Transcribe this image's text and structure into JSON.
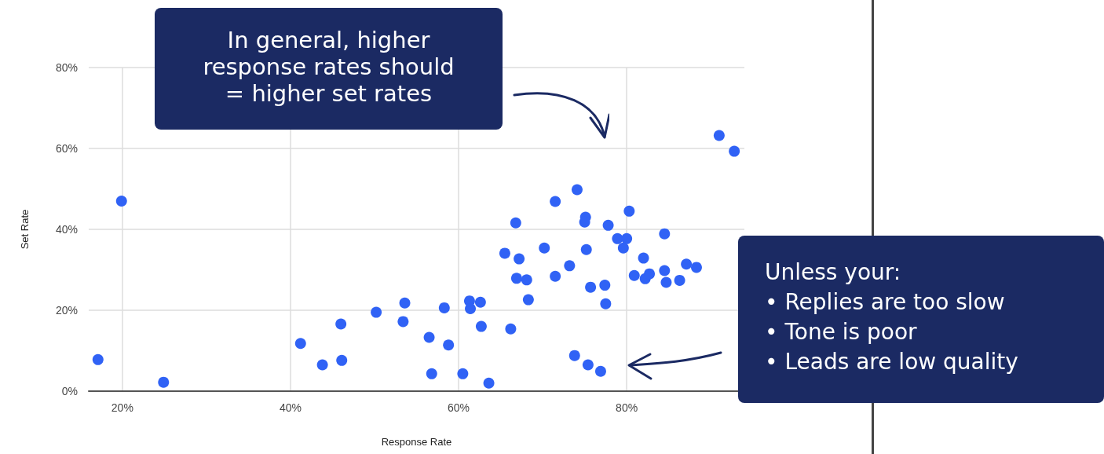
{
  "chart_data": {
    "type": "scatter",
    "xlabel": "Response Rate",
    "ylabel": "Set Rate",
    "x": [
      17.1,
      19.9,
      24.9,
      41.2,
      43.8,
      46.0,
      46.1,
      50.2,
      53.4,
      53.6,
      56.5,
      56.8,
      58.3,
      58.8,
      60.5,
      61.3,
      62.6,
      61.4,
      63.6,
      62.7,
      66.2,
      65.5,
      66.8,
      67.2,
      66.9,
      68.1,
      68.3,
      70.2,
      71.5,
      71.5,
      73.2,
      74.1,
      73.8,
      75.1,
      75.0,
      75.2,
      75.7,
      75.4,
      76.9,
      77.4,
      77.5,
      77.8,
      78.9,
      80.0,
      79.6,
      80.3,
      80.9,
      82.0,
      82.2,
      82.7,
      84.5,
      84.5,
      84.7,
      86.3,
      87.1,
      88.3,
      91.0,
      92.8
    ],
    "values": [
      7.8,
      47.0,
      2.2,
      11.8,
      6.5,
      16.6,
      7.6,
      19.5,
      17.2,
      21.8,
      13.3,
      4.3,
      20.6,
      11.4,
      4.3,
      22.3,
      22.0,
      20.4,
      2.0,
      16.0,
      15.4,
      34.1,
      41.6,
      32.7,
      27.9,
      27.5,
      22.6,
      35.4,
      46.9,
      28.4,
      31.0,
      49.8,
      8.8,
      43.0,
      41.8,
      35.0,
      25.7,
      6.5,
      4.9,
      26.2,
      21.6,
      41.0,
      37.7,
      37.7,
      35.4,
      44.5,
      28.6,
      32.9,
      27.8,
      29.0,
      38.9,
      29.8,
      26.9,
      27.4,
      31.4,
      30.6,
      63.2,
      59.3
    ],
    "color": "#3062f5",
    "marker": "circle",
    "grid": true,
    "xlim": [
      16,
      94
    ],
    "xticks": [
      {
        "value": 20,
        "label": "20%"
      },
      {
        "value": 40,
        "label": "40%"
      },
      {
        "value": 60,
        "label": "60%"
      },
      {
        "value": 80,
        "label": "80%"
      }
    ],
    "ylim": [
      0,
      80
    ],
    "yticks": [
      {
        "value": 0,
        "label": "0%"
      },
      {
        "value": 20,
        "label": "20%"
      },
      {
        "value": 40,
        "label": "40%"
      },
      {
        "value": 60,
        "label": "60%"
      },
      {
        "value": 80,
        "label": "80%"
      }
    ],
    "annotations": [
      "In general, higher\nresponse rates should\n= higher set rates",
      "Unless your:\n• Replies are too slow\n• Tone is poor\n• Leads are low quality"
    ]
  }
}
